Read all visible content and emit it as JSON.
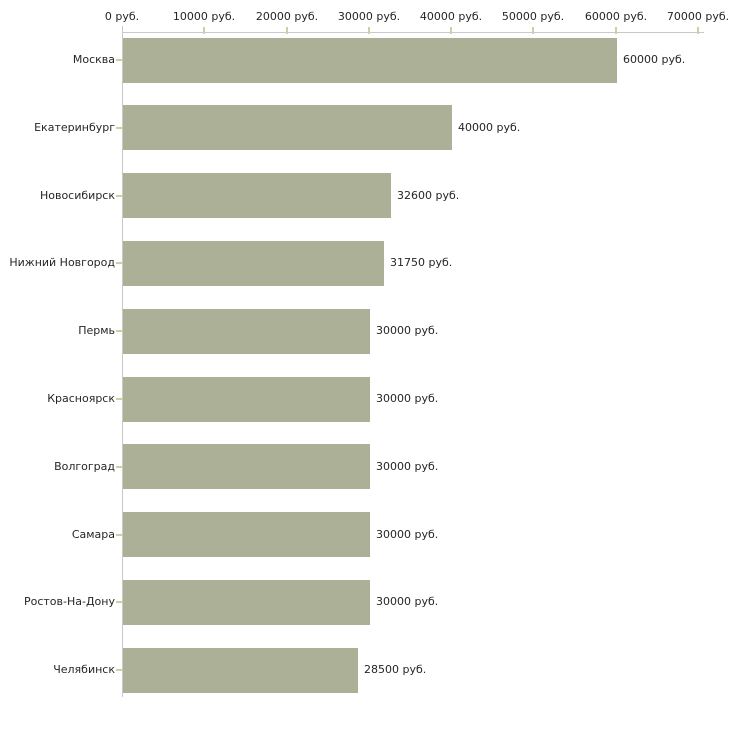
{
  "chart_data": {
    "type": "bar",
    "orientation": "horizontal",
    "title": "",
    "xlabel": "",
    "ylabel": "",
    "grid": false,
    "legend": false,
    "categories": [
      "Москва",
      "Екатеринбург",
      "Новосибирск",
      "Нижний Новгород",
      "Пермь",
      "Красноярск",
      "Волгоград",
      "Самара",
      "Ростов-На-Дону",
      "Челябинск"
    ],
    "values": [
      60000,
      40000,
      32600,
      31750,
      30000,
      30000,
      30000,
      30000,
      30000,
      28500
    ],
    "value_labels": [
      "60000 руб.",
      "40000 руб.",
      "32600 руб.",
      "31750 руб.",
      "30000 руб.",
      "30000 руб.",
      "30000 руб.",
      "30000 руб.",
      "30000 руб.",
      "28500 руб."
    ],
    "x_axis": {
      "position": "top",
      "min": 0,
      "max": 70000,
      "ticks": [
        0,
        10000,
        20000,
        30000,
        40000,
        50000,
        60000,
        70000
      ],
      "tick_labels": [
        "0 руб.",
        "10000 руб.",
        "20000 руб.",
        "30000 руб.",
        "40000 руб.",
        "50000 руб.",
        "60000 руб.",
        "70000 руб."
      ]
    },
    "colors": {
      "bar": "#abb097",
      "axis_line": "#c9c9c9",
      "tick_mark": "#cfcf9f",
      "text": "#262626",
      "background": "#ffffff"
    }
  }
}
